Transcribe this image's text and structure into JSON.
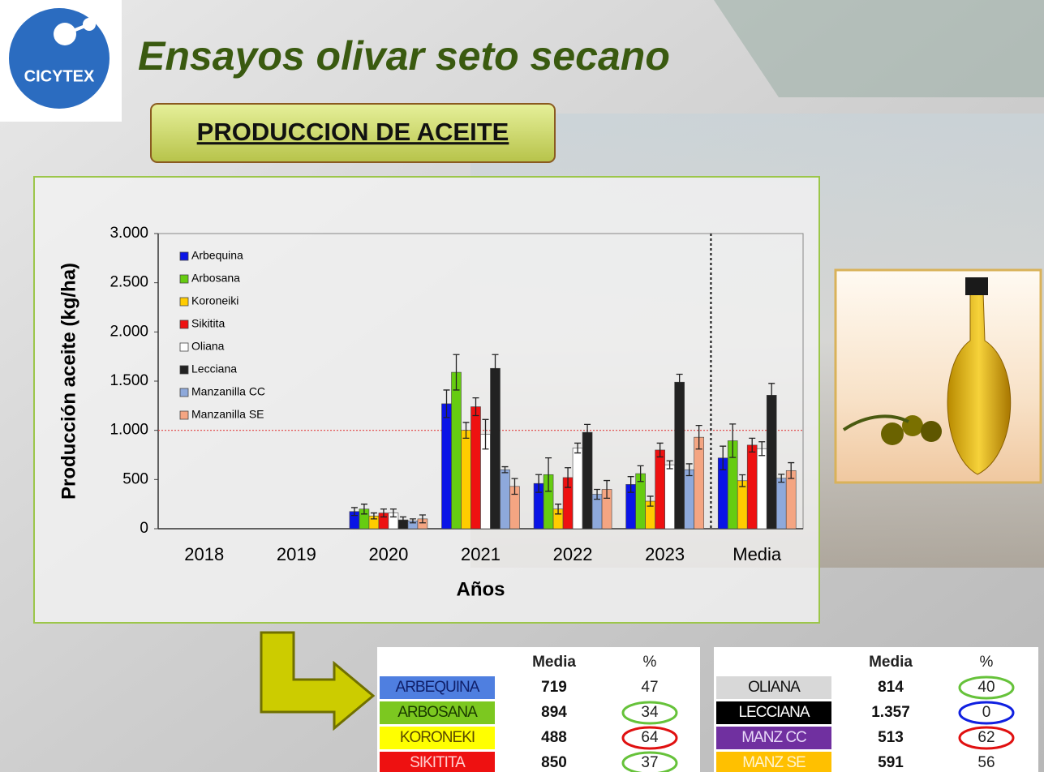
{
  "header": {
    "logo": "CICYTEX",
    "title": "Ensayos olivar seto secano",
    "section": "PRODUCCION DE ACEITE"
  },
  "chart_data": {
    "type": "bar",
    "ylabel": "Producción aceite (kg/ha)",
    "xlabel": "Años",
    "categories": [
      "2018",
      "2019",
      "2020",
      "2021",
      "2022",
      "2023",
      "Media"
    ],
    "ylim": [
      0,
      3000
    ],
    "yticks": [
      0,
      500,
      {
        "value": 1000,
        "label": "1.000"
      },
      {
        "value": 1500,
        "label": "1.500"
      },
      {
        "value": 2000,
        "label": "2.000"
      },
      {
        "value": 2500,
        "label": "2.500"
      },
      {
        "value": 3000,
        "label": "3.000"
      }
    ],
    "grid": false,
    "legend": "upper left",
    "reference_line": 1000,
    "series": [
      {
        "name": "Arbequina",
        "color": "#0a14e6",
        "values": [
          null,
          null,
          175,
          1270,
          460,
          450,
          719
        ],
        "errors": [
          null,
          null,
          40,
          140,
          90,
          80,
          120
        ]
      },
      {
        "name": "Arbosana",
        "color": "#66cc11",
        "values": [
          null,
          null,
          200,
          1590,
          550,
          560,
          894
        ],
        "errors": [
          null,
          null,
          50,
          180,
          170,
          80,
          170
        ]
      },
      {
        "name": "Koroneiki",
        "color": "#ffcc00",
        "values": [
          null,
          null,
          130,
          1000,
          200,
          280,
          488
        ],
        "errors": [
          null,
          null,
          30,
          80,
          50,
          50,
          60
        ]
      },
      {
        "name": "Sikitita",
        "color": "#ee1111",
        "values": [
          null,
          null,
          160,
          1240,
          520,
          800,
          850
        ],
        "errors": [
          null,
          null,
          40,
          90,
          100,
          70,
          70
        ]
      },
      {
        "name": "Oliana",
        "color": "#ffffff",
        "values": [
          null,
          null,
          160,
          960,
          820,
          650,
          814
        ],
        "errors": [
          null,
          null,
          40,
          150,
          50,
          40,
          70
        ]
      },
      {
        "name": "Lecciana",
        "color": "#222222",
        "values": [
          null,
          null,
          90,
          1630,
          980,
          1490,
          1357
        ],
        "errors": [
          null,
          null,
          30,
          140,
          80,
          80,
          120
        ]
      },
      {
        "name": "Manzanilla CC",
        "color": "#8ea9db",
        "values": [
          null,
          null,
          80,
          600,
          350,
          600,
          513
        ],
        "errors": [
          null,
          null,
          20,
          30,
          50,
          60,
          40
        ]
      },
      {
        "name": "Manzanilla SE",
        "color": "#f4a582",
        "values": [
          null,
          null,
          100,
          430,
          400,
          930,
          591
        ],
        "errors": [
          null,
          null,
          40,
          80,
          90,
          120,
          80
        ]
      }
    ]
  },
  "tables": [
    {
      "columns": [
        "Media",
        "%"
      ],
      "rows": [
        {
          "name": "ARBEQUINA",
          "bg": "#4f7fe0",
          "fg": "#10206a",
          "media": 719,
          "pct": 47,
          "circle": null
        },
        {
          "name": "ARBOSANA",
          "bg": "#7cc820",
          "fg": "#1a3a00",
          "media": 894,
          "pct": 34,
          "circle": "#66c23a"
        },
        {
          "name": "KORONEKI",
          "bg": "#ffff00",
          "fg": "#5a4a00",
          "media": 488,
          "pct": 64,
          "circle": "#e01010"
        },
        {
          "name": "SIKITITA",
          "bg": "#ee1111",
          "fg": "#ffd0d0",
          "media": 850,
          "pct": 37,
          "circle": "#66c23a"
        }
      ]
    },
    {
      "columns": [
        "Media",
        "%"
      ],
      "rows": [
        {
          "name": "OLIANA",
          "bg": "#d8d8d8",
          "fg": "#111111",
          "media": 814,
          "pct": 40,
          "circle": "#66c23a"
        },
        {
          "name": "LECCIANA",
          "bg": "#000000",
          "fg": "#ffffff",
          "media": "1.357",
          "pct": 0,
          "circle": "#1020e0"
        },
        {
          "name": "MANZ CC",
          "bg": "#7030a0",
          "fg": "#e8d8f8",
          "media": 513,
          "pct": 62,
          "circle": "#e01010"
        },
        {
          "name": "MANZ SE",
          "bg": "#ffc000",
          "fg": "#fff4d0",
          "media": 591,
          "pct": 56,
          "circle": null
        }
      ]
    }
  ]
}
